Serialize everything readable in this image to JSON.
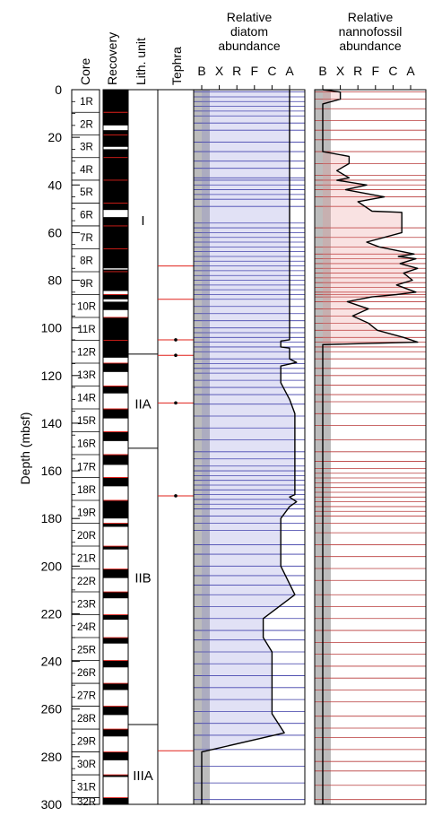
{
  "chart_data": {
    "type": "strip-log",
    "ylabel": "Depth (mbsf)",
    "ylim": [
      0,
      300
    ],
    "y_ticks": [
      0,
      20,
      40,
      60,
      80,
      100,
      120,
      140,
      160,
      180,
      200,
      220,
      240,
      260,
      280,
      300
    ],
    "columns": {
      "core": "Core",
      "recovery": "Recovery",
      "lith": "Lith. unit",
      "tephra": "Tephra",
      "diatom": [
        "Relative",
        "diatom",
        "abundance"
      ],
      "nanno": [
        "Relative",
        "nannofossil",
        "abundance"
      ]
    },
    "abundance_scale": [
      "B",
      "X",
      "R",
      "F",
      "C",
      "A"
    ],
    "cores": [
      {
        "label": "1R",
        "top": 0,
        "bottom": 9.5,
        "recovery": [
          [
            0,
            9.5
          ]
        ]
      },
      {
        "label": "2R",
        "top": 9.5,
        "bottom": 19,
        "recovery": [
          [
            9.5,
            15
          ],
          [
            17,
            19
          ]
        ]
      },
      {
        "label": "3R",
        "top": 19,
        "bottom": 28.5,
        "recovery": [
          [
            19,
            24
          ],
          [
            25,
            28.5
          ]
        ]
      },
      {
        "label": "4R",
        "top": 28.5,
        "bottom": 38,
        "recovery": [
          [
            28.5,
            38
          ]
        ]
      },
      {
        "label": "5R",
        "top": 38,
        "bottom": 47.6,
        "recovery": [
          [
            38,
            47.6
          ]
        ]
      },
      {
        "label": "6R",
        "top": 47.6,
        "bottom": 57.2,
        "recovery": [
          [
            47.6,
            50.5
          ],
          [
            53.5,
            57.2
          ]
        ]
      },
      {
        "label": "7R",
        "top": 57.2,
        "bottom": 66.8,
        "recovery": [
          [
            57.2,
            66.8
          ]
        ]
      },
      {
        "label": "8R",
        "top": 66.8,
        "bottom": 76.4,
        "recovery": [
          [
            66.8,
            75
          ],
          [
            75.5,
            76.4
          ]
        ]
      },
      {
        "label": "9R",
        "top": 76.4,
        "bottom": 86,
        "recovery": [
          [
            76.4,
            84.5
          ]
        ]
      },
      {
        "label": "10R",
        "top": 86,
        "bottom": 95.6,
        "recovery": [
          [
            86,
            88
          ],
          [
            89,
            92.5
          ]
        ]
      },
      {
        "label": "11R",
        "top": 95.6,
        "bottom": 105.2,
        "recovery": [
          [
            95.6,
            105.2
          ]
        ]
      },
      {
        "label": "12R",
        "top": 105.2,
        "bottom": 114.8,
        "recovery": [
          [
            105.2,
            112.5
          ]
        ]
      },
      {
        "label": "13R",
        "top": 114.8,
        "bottom": 124.4,
        "recovery": [
          [
            114.8,
            118.5
          ]
        ]
      },
      {
        "label": "14R",
        "top": 124.4,
        "bottom": 134,
        "recovery": [
          [
            124.4,
            127.5
          ]
        ]
      },
      {
        "label": "15R",
        "top": 134,
        "bottom": 143.6,
        "recovery": [
          [
            134,
            138
          ]
        ]
      },
      {
        "label": "16R",
        "top": 143.6,
        "bottom": 153.2,
        "recovery": [
          [
            143.6,
            147.5
          ]
        ]
      },
      {
        "label": "17R",
        "top": 153.2,
        "bottom": 162.8,
        "recovery": [
          [
            153.2,
            157.5
          ]
        ]
      },
      {
        "label": "18R",
        "top": 162.8,
        "bottom": 172.4,
        "recovery": [
          [
            162.8,
            166.5
          ]
        ]
      },
      {
        "label": "19R",
        "top": 172.4,
        "bottom": 182,
        "recovery": [
          [
            172.4,
            180
          ]
        ]
      },
      {
        "label": "20R",
        "top": 182,
        "bottom": 191.6,
        "recovery": [
          [
            182,
            183.5
          ]
        ]
      },
      {
        "label": "21R",
        "top": 191.6,
        "bottom": 201.2,
        "recovery": [
          [
            191.6,
            193
          ]
        ]
      },
      {
        "label": "22R",
        "top": 201.2,
        "bottom": 210.8,
        "recovery": [
          [
            201.2,
            205
          ]
        ]
      },
      {
        "label": "23R",
        "top": 210.8,
        "bottom": 220.4,
        "recovery": [
          [
            210.8,
            213.5
          ]
        ]
      },
      {
        "label": "24R",
        "top": 220.4,
        "bottom": 230,
        "recovery": [
          [
            220.4,
            222.5
          ]
        ]
      },
      {
        "label": "25R",
        "top": 230,
        "bottom": 239.6,
        "recovery": [
          [
            230,
            232.5
          ]
        ]
      },
      {
        "label": "26R",
        "top": 239.6,
        "bottom": 249.2,
        "recovery": [
          [
            239.6,
            242.5
          ]
        ]
      },
      {
        "label": "27R",
        "top": 249.2,
        "bottom": 258.8,
        "recovery": [
          [
            249.2,
            252
          ]
        ]
      },
      {
        "label": "28R",
        "top": 258.8,
        "bottom": 268.4,
        "recovery": [
          [
            258.8,
            262.5
          ]
        ]
      },
      {
        "label": "29R",
        "top": 268.4,
        "bottom": 278,
        "recovery": [
          [
            268.4,
            271.5
          ]
        ]
      },
      {
        "label": "30R",
        "top": 278,
        "bottom": 287.6,
        "recovery": [
          [
            278,
            281.5
          ]
        ]
      },
      {
        "label": "31R",
        "top": 287.6,
        "bottom": 297.2,
        "recovery": [
          [
            287.6,
            288.5
          ]
        ]
      },
      {
        "label": "32R",
        "top": 297.2,
        "bottom": 300,
        "recovery": [
          [
            297.2,
            300
          ]
        ]
      }
    ],
    "lith_units": [
      {
        "label": "I",
        "top": 0,
        "bottom": 111,
        "label_depth": 55
      },
      {
        "label": "IIA",
        "top": 111,
        "bottom": 150.5,
        "label_depth": 132
      },
      {
        "label": "IIB",
        "top": 150.5,
        "bottom": 266.5,
        "label_depth": 205
      },
      {
        "label": "IIIA",
        "top": 266.5,
        "bottom": 300,
        "label_depth": 288
      }
    ],
    "tephra_depths": [
      105,
      111.5,
      131.5,
      170.5
    ],
    "tephra_lines": [
      74,
      88,
      105,
      111.5,
      131.5,
      170.5,
      277.5
    ],
    "diatom_samples": [
      1,
      3,
      5,
      7,
      9,
      11,
      14,
      17,
      22,
      26,
      30,
      33,
      37,
      38,
      40,
      42,
      44,
      46,
      49,
      56,
      58,
      60,
      62,
      64,
      66,
      68,
      70,
      72,
      74,
      76,
      78,
      80,
      82,
      84,
      86,
      88,
      91,
      94,
      97,
      100,
      102,
      104,
      106,
      108,
      110,
      113,
      115,
      117,
      119,
      122,
      125,
      128,
      132,
      137,
      142,
      147,
      152,
      155,
      158,
      160,
      162,
      164,
      166,
      168,
      170,
      172,
      174,
      176,
      179,
      182,
      185,
      191,
      195,
      200,
      204,
      208,
      212,
      217,
      222,
      227,
      231,
      236,
      241,
      246,
      251,
      256,
      261,
      266,
      271,
      277,
      284,
      291,
      298
    ],
    "nanno_samples": [
      1,
      4,
      8,
      13,
      17,
      21,
      26,
      31,
      36,
      38,
      40,
      42,
      45,
      49,
      58,
      62,
      66,
      69,
      71,
      73,
      75,
      77,
      79,
      81,
      83,
      85,
      86,
      87,
      89,
      92,
      95,
      98,
      101,
      104,
      106,
      108,
      110,
      113,
      117,
      120,
      124,
      128,
      131,
      136,
      141,
      147,
      152,
      156,
      159,
      161,
      163,
      165,
      167,
      169,
      171,
      173,
      175,
      177,
      179,
      182,
      186,
      191,
      196,
      201,
      206,
      212,
      217,
      222,
      227,
      232,
      237,
      242,
      247,
      252,
      257,
      263,
      268,
      272,
      277,
      282,
      286,
      292,
      298
    ],
    "diatom_profile": [
      [
        0,
        5
      ],
      [
        105,
        5
      ],
      [
        105.5,
        4.5
      ],
      [
        108,
        4.5
      ],
      [
        108.5,
        5
      ],
      [
        113,
        5
      ],
      [
        114.5,
        5.4
      ],
      [
        116,
        4.5
      ],
      [
        123,
        4.5
      ],
      [
        130,
        5
      ],
      [
        136,
        5.3
      ],
      [
        170,
        5.3
      ],
      [
        171,
        5
      ],
      [
        173,
        5.4
      ],
      [
        175,
        5
      ],
      [
        180,
        4.5
      ],
      [
        200,
        4.5
      ],
      [
        212,
        5.3
      ],
      [
        222,
        3.5
      ],
      [
        230,
        3.5
      ],
      [
        236,
        4
      ],
      [
        262,
        4
      ],
      [
        270,
        4.7
      ],
      [
        278,
        0
      ],
      [
        300,
        0
      ]
    ],
    "nanno_profile": [
      [
        0,
        0
      ],
      [
        1,
        1
      ],
      [
        4,
        1
      ],
      [
        6,
        0
      ],
      [
        26,
        0
      ],
      [
        28,
        1.5
      ],
      [
        31,
        1.5
      ],
      [
        34,
        0.8
      ],
      [
        37,
        1.5
      ],
      [
        38,
        0.8
      ],
      [
        40,
        2.5
      ],
      [
        42,
        1.3
      ],
      [
        45,
        3.5
      ],
      [
        47,
        2
      ],
      [
        51,
        2.8
      ],
      [
        51.5,
        4.5
      ],
      [
        60,
        4.5
      ],
      [
        64,
        2.5
      ],
      [
        66,
        3.2
      ],
      [
        69,
        5.2
      ],
      [
        70,
        4.3
      ],
      [
        71,
        5.3
      ],
      [
        73,
        4.4
      ],
      [
        75,
        5.4
      ],
      [
        77,
        4.6
      ],
      [
        80,
        5.1
      ],
      [
        82,
        4.2
      ],
      [
        85,
        5.3
      ],
      [
        86,
        4.2
      ],
      [
        87,
        2.8
      ],
      [
        89,
        1.4
      ],
      [
        92,
        2.6
      ],
      [
        95,
        1.7
      ],
      [
        98,
        2.6
      ],
      [
        101,
        3.1
      ],
      [
        104,
        4.6
      ],
      [
        106,
        5.4
      ],
      [
        107,
        0
      ],
      [
        300,
        0
      ]
    ]
  }
}
